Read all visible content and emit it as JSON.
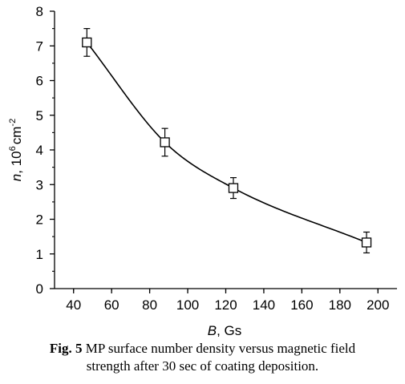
{
  "chart_data": {
    "type": "scatter",
    "x": [
      47,
      88,
      124,
      194
    ],
    "y": [
      7.1,
      4.22,
      2.9,
      1.33
    ],
    "error": [
      0.4,
      0.4,
      0.3,
      0.3
    ],
    "fit_curve": true,
    "xlim": [
      30,
      210
    ],
    "ylim": [
      0,
      8
    ],
    "xticks": [
      40,
      60,
      80,
      100,
      120,
      140,
      160,
      180,
      200
    ],
    "yticks": [
      0,
      1,
      2,
      3,
      4,
      5,
      6,
      7,
      8
    ],
    "xlabel": {
      "var": "B",
      "rest": ", Gs"
    },
    "ylabel": {
      "var": "n",
      "comma": ", ",
      "mant": "10",
      "exp": "6",
      "unit": "cm",
      "uexp": "-2"
    },
    "grid": false
  },
  "caption": {
    "label": "Fig. 5",
    "line1": " MP surface number density versus magnetic field",
    "line2": "strength after 30 sec of coating deposition."
  }
}
